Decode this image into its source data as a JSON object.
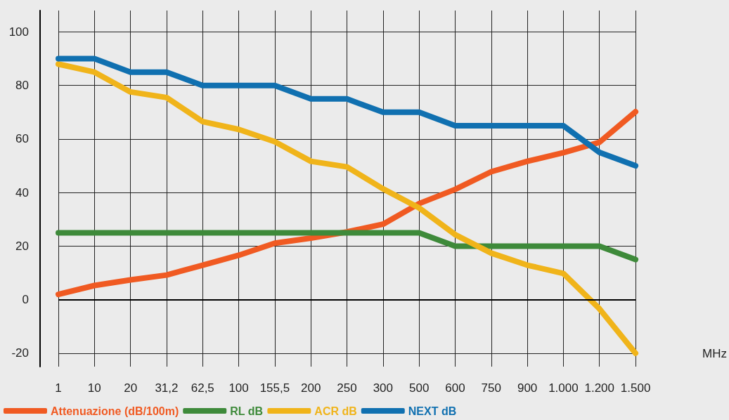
{
  "chart_data": {
    "type": "line",
    "xlabel": "MHz",
    "categories": [
      "1",
      "10",
      "20",
      "31,2",
      "62,5",
      "100",
      "155,5",
      "200",
      "250",
      "300",
      "500",
      "600",
      "750",
      "900",
      "1.000",
      "1.200",
      "1.500"
    ],
    "series": [
      {
        "name": "Attenuazione (dB/100m)",
        "color": "#f05a22",
        "values": [
          2,
          5.3,
          7.4,
          9.2,
          12.9,
          16.6,
          21.1,
          23,
          25.3,
          28.2,
          35.9,
          41.2,
          47.8,
          51.7,
          54.9,
          58.8,
          70.2
        ]
      },
      {
        "name": "RL dB",
        "color": "#3e8a3a",
        "values": [
          25,
          25,
          25,
          25,
          25,
          25,
          25,
          25,
          25,
          25,
          25,
          20,
          20,
          20,
          20,
          20,
          15
        ]
      },
      {
        "name": "ACR dB",
        "color": "#f0b41a",
        "values": [
          88,
          85,
          77.6,
          75.5,
          66.5,
          63.6,
          59,
          51.7,
          49.6,
          41.4,
          34.3,
          24.3,
          17.4,
          12.9,
          9.8,
          -3.4,
          -20
        ]
      },
      {
        "name": "NEXT dB",
        "color": "#1070b0",
        "values": [
          90,
          90,
          85,
          85,
          80,
          80,
          80,
          75,
          75,
          70,
          70,
          65,
          65,
          65,
          65,
          55,
          50
        ]
      }
    ],
    "ylim": [
      -25,
      108
    ],
    "yticks": [
      -20,
      0,
      20,
      40,
      60,
      80,
      100
    ],
    "ref_lines": [
      {
        "axis": "y",
        "value": 0,
        "color": "#000000"
      }
    ],
    "grid": true,
    "legend": "bottom left",
    "marker": "none",
    "line_style": "solid"
  }
}
